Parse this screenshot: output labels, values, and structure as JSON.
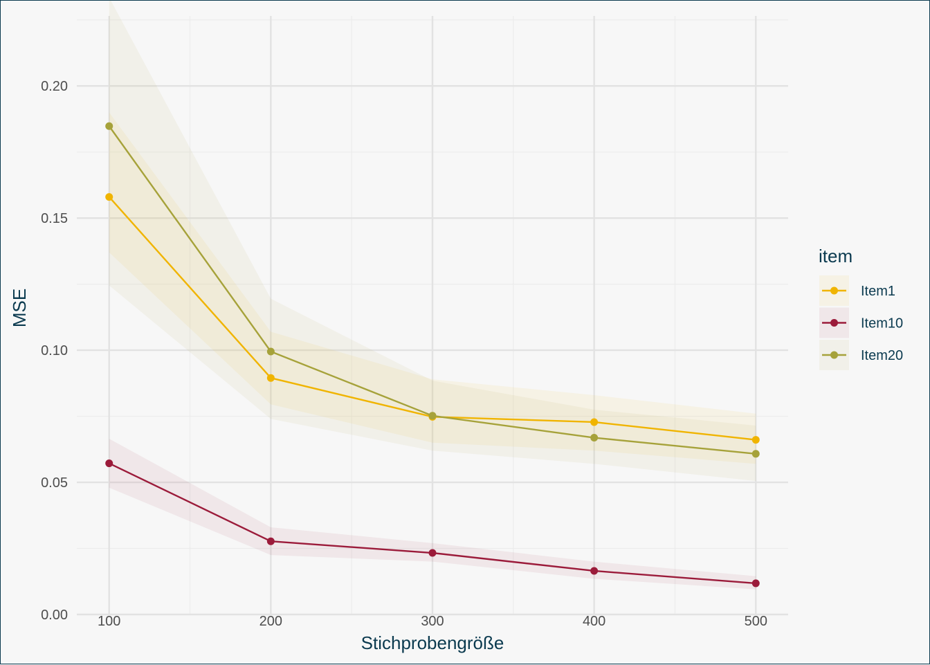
{
  "chart_data": {
    "type": "line",
    "title": "",
    "xlabel": "Stichprobengröße",
    "ylabel": "MSE",
    "x": [
      100,
      200,
      300,
      400,
      500
    ],
    "xlim": [
      80,
      520
    ],
    "ylim": [
      0,
      0.2265
    ],
    "xticks": [
      100,
      200,
      300,
      400,
      500
    ],
    "yticks": [
      0.0,
      0.05,
      0.1,
      0.15,
      0.2
    ],
    "ytick_labels": [
      "0.00",
      "0.05",
      "0.10",
      "0.15",
      "0.20"
    ],
    "grid": true,
    "legend": {
      "title": "item",
      "position": "right"
    },
    "series": [
      {
        "name": "Item1",
        "color": "#f0b400",
        "values": [
          0.158,
          0.0895,
          0.0748,
          0.0728,
          0.0661
        ],
        "ci_lower": [
          0.137,
          0.0795,
          0.065,
          0.062,
          0.057
        ],
        "ci_upper": [
          0.19,
          0.107,
          0.089,
          0.083,
          0.076
        ]
      },
      {
        "name": "Item10",
        "color": "#9b1b3a",
        "values": [
          0.0572,
          0.0277,
          0.0233,
          0.0165,
          0.0118
        ],
        "ci_lower": [
          0.048,
          0.0225,
          0.02,
          0.0135,
          0.0095
        ],
        "ci_upper": [
          0.0665,
          0.033,
          0.027,
          0.02,
          0.0145
        ]
      },
      {
        "name": "Item20",
        "color": "#a6a23a",
        "values": [
          0.1848,
          0.0995,
          0.0752,
          0.0669,
          0.0608
        ],
        "ci_lower": [
          0.1245,
          0.074,
          0.062,
          0.057,
          0.0505
        ],
        "ci_upper": [
          0.2335,
          0.1195,
          0.0885,
          0.0775,
          0.0715
        ]
      }
    ]
  }
}
